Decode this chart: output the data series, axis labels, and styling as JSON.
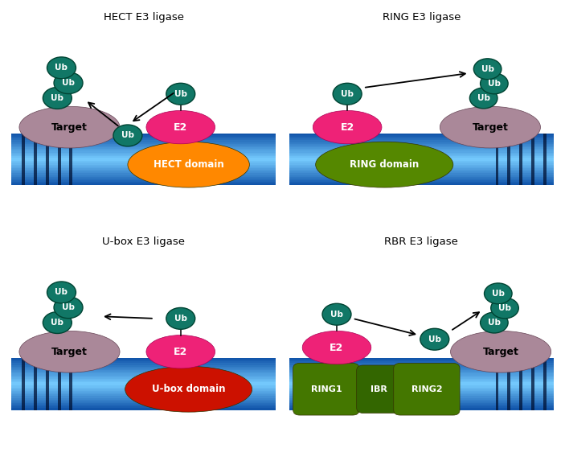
{
  "colors": {
    "membrane_light": "#55aaff",
    "membrane_mid": "#2277dd",
    "membrane_dark": "#1155aa",
    "target_color": "#aa8899",
    "e2_color": "#ee2277",
    "ub_color": "#117766",
    "ub_edge": "#004433",
    "hect_domain_color": "#ff8800",
    "ring_domain_color": "#558800",
    "ubox_domain_color": "#cc1100",
    "rbr_domain_color": "#447700",
    "ibr_color": "#336600",
    "background": "#ffffff",
    "stripe_color": "#001133"
  },
  "panels": [
    {
      "label": "HECT E3 ligase"
    },
    {
      "label": "RING E3 ligase"
    },
    {
      "label": "U-box E3 ligase"
    },
    {
      "label": "RBR E3 ligase"
    }
  ]
}
